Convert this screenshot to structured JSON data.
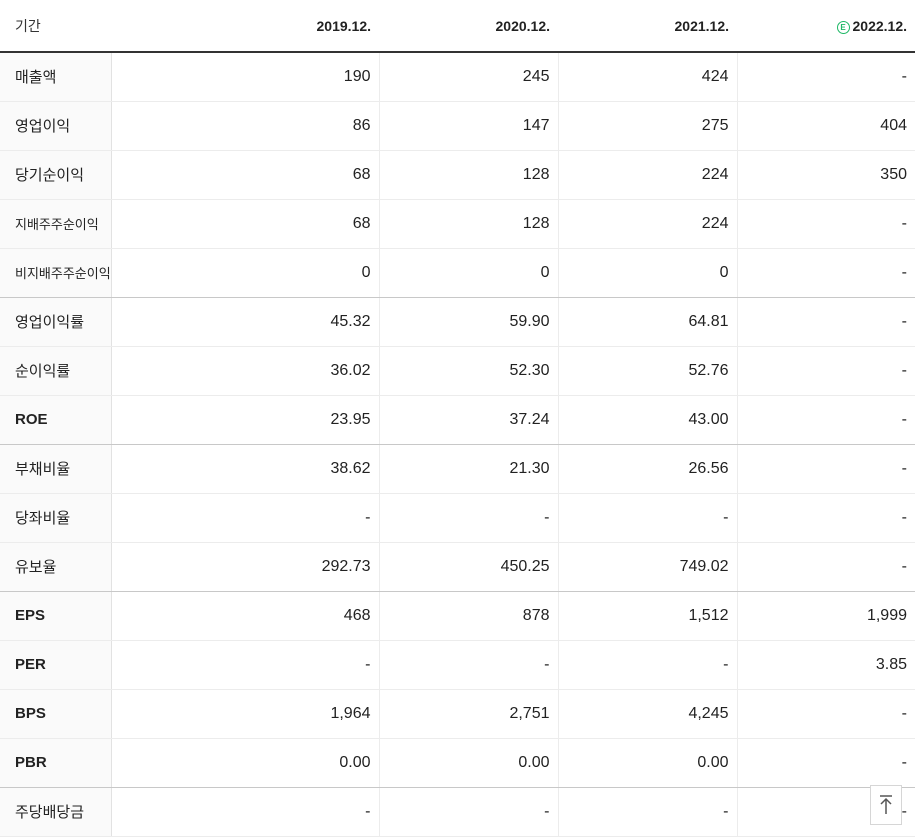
{
  "header": {
    "label": "기간",
    "estimate_mark": "E",
    "periods": [
      "2019.12.",
      "2020.12.",
      "2021.12.",
      "2022.12."
    ]
  },
  "rows": [
    {
      "label": "매출액",
      "values": [
        "190",
        "245",
        "424",
        "-"
      ]
    },
    {
      "label": "영업이익",
      "values": [
        "86",
        "147",
        "275",
        "404"
      ]
    },
    {
      "label": "당기순이익",
      "values": [
        "68",
        "128",
        "224",
        "350"
      ]
    },
    {
      "label": "지배주주순이익",
      "values": [
        "68",
        "128",
        "224",
        "-"
      ]
    },
    {
      "label": "비지배주주순이익",
      "values": [
        "0",
        "0",
        "0",
        "-"
      ]
    },
    {
      "label": "영업이익률",
      "values": [
        "45.32",
        "59.90",
        "64.81",
        "-"
      ]
    },
    {
      "label": "순이익률",
      "values": [
        "36.02",
        "52.30",
        "52.76",
        "-"
      ]
    },
    {
      "label": "ROE",
      "values": [
        "23.95",
        "37.24",
        "43.00",
        "-"
      ]
    },
    {
      "label": "부채비율",
      "values": [
        "38.62",
        "21.30",
        "26.56",
        "-"
      ]
    },
    {
      "label": "당좌비율",
      "values": [
        "-",
        "-",
        "-",
        "-"
      ]
    },
    {
      "label": "유보율",
      "values": [
        "292.73",
        "450.25",
        "749.02",
        "-"
      ]
    },
    {
      "label": "EPS",
      "values": [
        "468",
        "878",
        "1,512",
        "1,999"
      ]
    },
    {
      "label": "PER",
      "values": [
        "-",
        "-",
        "-",
        "3.85"
      ]
    },
    {
      "label": "BPS",
      "values": [
        "1,964",
        "2,751",
        "4,245",
        "-"
      ]
    },
    {
      "label": "PBR",
      "values": [
        "0.00",
        "0.00",
        "0.00",
        "-"
      ]
    },
    {
      "label": "주당배당금",
      "values": [
        "-",
        "-",
        "-",
        "-"
      ]
    }
  ],
  "icons": {
    "scroll_top": "arrow-up-to-line-icon"
  },
  "colors": {
    "estimate_accent": "#1fb866",
    "header_rule": "#333333",
    "label_background": "#fafafa"
  }
}
